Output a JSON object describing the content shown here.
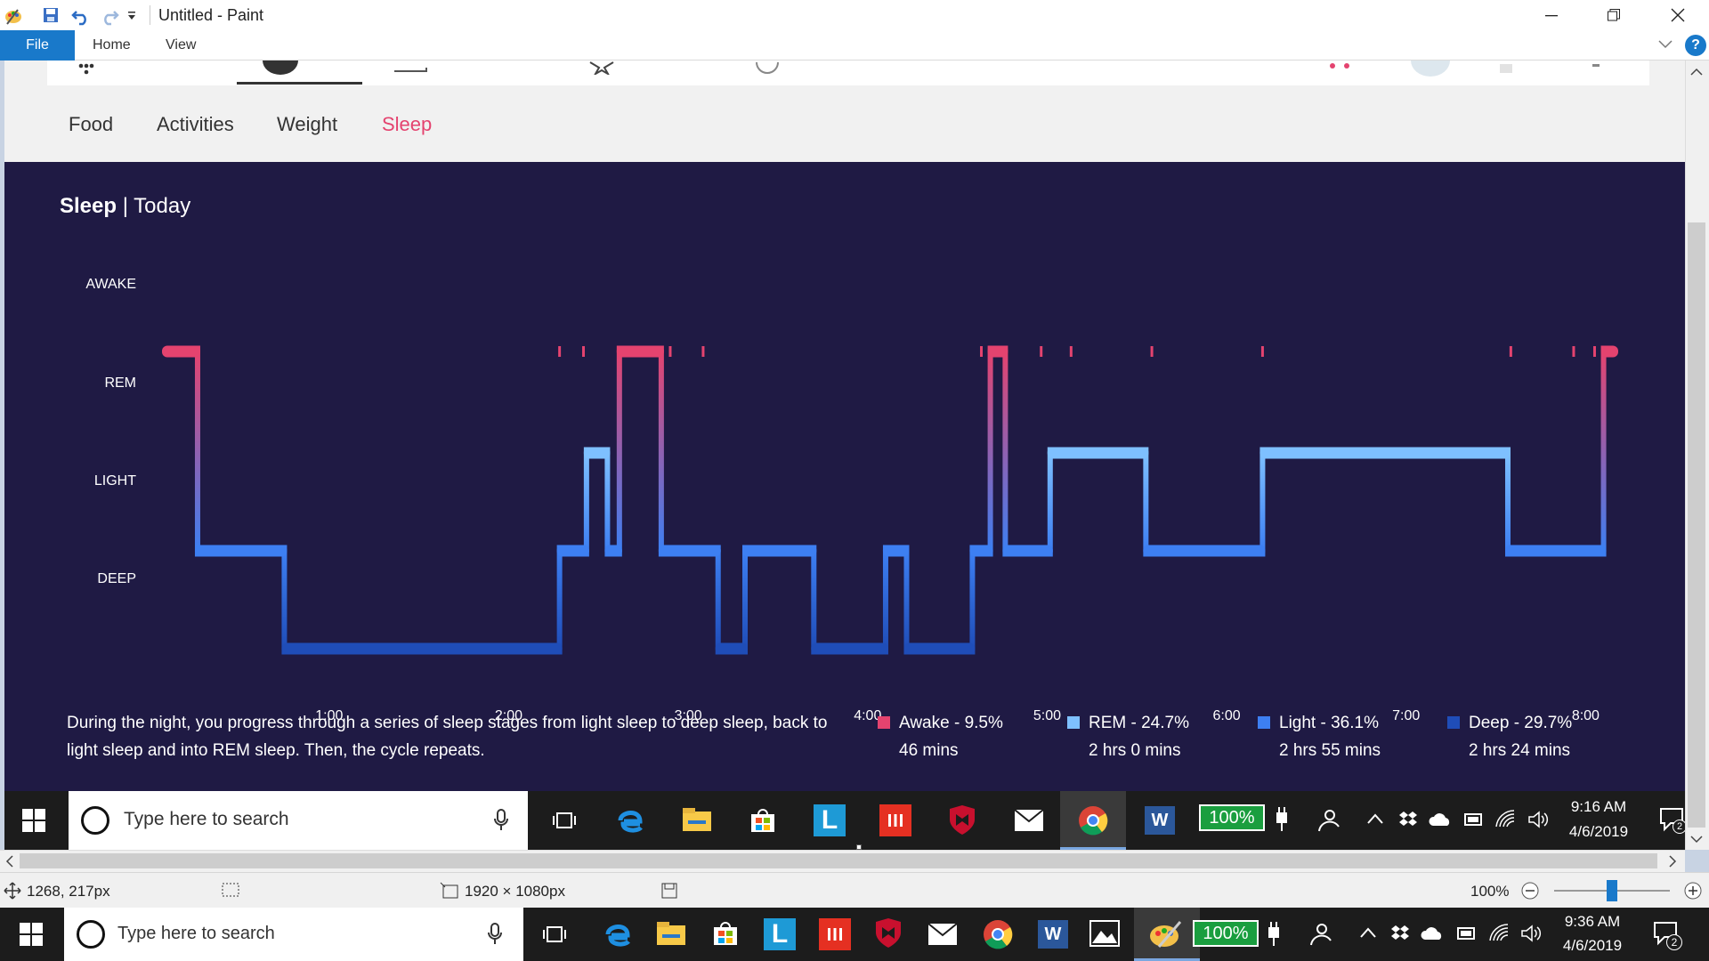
{
  "window": {
    "title": "Untitled - Paint",
    "tabs": {
      "file": "File",
      "home": "Home",
      "view": "View"
    },
    "help_label": "?"
  },
  "fitbit": {
    "subnav": [
      "Food",
      "Activities",
      "Weight",
      "Sleep"
    ],
    "active_tab": "Sleep",
    "sleep_title_bold": "Sleep",
    "sleep_title_rest": " | Today",
    "description": "During the night, you progress through a series of sleep stages from light sleep to deep sleep, back to light sleep and into REM sleep. Then, the cycle repeats.",
    "legend": [
      {
        "label": "Awake - 9.5%",
        "duration": "46 mins",
        "color": "#e4436f"
      },
      {
        "label": "REM - 24.7%",
        "duration": "2 hrs 0 mins",
        "color": "#7ec0ff"
      },
      {
        "label": "Light - 36.1%",
        "duration": "2 hrs 55 mins",
        "color": "#3d7ff2"
      },
      {
        "label": "Deep - 29.7%",
        "duration": "2 hrs 24 mins",
        "color": "#1f4db8"
      }
    ]
  },
  "chart_data": {
    "type": "line",
    "title": "Sleep | Today",
    "y_levels": [
      "AWAKE",
      "REM",
      "LIGHT",
      "DEEP"
    ],
    "x_ticks": [
      "1:00",
      "2:00",
      "3:00",
      "4:00",
      "5:00",
      "6:00",
      "7:00",
      "8:00"
    ],
    "x_range": [
      "0:05",
      "8:10"
    ],
    "colors": {
      "AWAKE": "#e4436f",
      "REM": "#7ec0ff",
      "LIGHT": "#3d7ff2",
      "DEEP": "#1f4db8"
    },
    "segments": [
      {
        "stage": "AWAKE",
        "start": "0:05",
        "end": "0:16"
      },
      {
        "stage": "LIGHT",
        "start": "0:16",
        "end": "0:45"
      },
      {
        "stage": "DEEP",
        "start": "0:45",
        "end": "2:17"
      },
      {
        "stage": "LIGHT",
        "start": "2:17",
        "end": "2:26"
      },
      {
        "stage": "REM",
        "start": "2:26",
        "end": "2:33"
      },
      {
        "stage": "LIGHT",
        "start": "2:33",
        "end": "2:37"
      },
      {
        "stage": "AWAKE",
        "start": "2:37",
        "end": "2:51"
      },
      {
        "stage": "LIGHT",
        "start": "2:51",
        "end": "3:10"
      },
      {
        "stage": "DEEP",
        "start": "3:10",
        "end": "3:19"
      },
      {
        "stage": "LIGHT",
        "start": "3:19",
        "end": "3:42"
      },
      {
        "stage": "DEEP",
        "start": "3:42",
        "end": "4:06"
      },
      {
        "stage": "LIGHT",
        "start": "4:06",
        "end": "4:13"
      },
      {
        "stage": "DEEP",
        "start": "4:13",
        "end": "4:35"
      },
      {
        "stage": "LIGHT",
        "start": "4:35",
        "end": "4:41"
      },
      {
        "stage": "AWAKE",
        "start": "4:41",
        "end": "4:46"
      },
      {
        "stage": "LIGHT",
        "start": "4:46",
        "end": "5:01"
      },
      {
        "stage": "REM",
        "start": "5:01",
        "end": "5:33"
      },
      {
        "stage": "LIGHT",
        "start": "5:33",
        "end": "6:12"
      },
      {
        "stage": "REM",
        "start": "6:12",
        "end": "7:34"
      },
      {
        "stage": "LIGHT",
        "start": "7:34",
        "end": "8:06"
      },
      {
        "stage": "AWAKE",
        "start": "8:06",
        "end": "8:10"
      }
    ],
    "brief_awakenings": [
      "2:17",
      "2:25",
      "2:54",
      "3:05",
      "4:38",
      "4:58",
      "5:08",
      "5:35",
      "6:12",
      "7:35",
      "7:56",
      "8:03"
    ]
  },
  "inner_taskbar": {
    "search_placeholder": "Type here to search",
    "battery": "100%",
    "time": "9:16 AM",
    "date": "4/6/2019",
    "notifications": "2"
  },
  "statusbar": {
    "cursor_pos": "1268, 217px",
    "image_size": "1920 × 1080px",
    "zoom": "100%",
    "zoom_level": 1.0
  },
  "taskbar": {
    "search_placeholder": "Type here to search",
    "battery": "100%",
    "time": "9:36 AM",
    "date": "4/6/2019",
    "notifications": "2"
  }
}
